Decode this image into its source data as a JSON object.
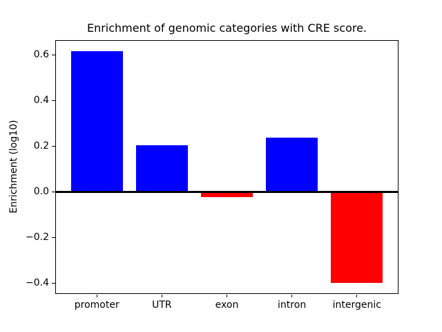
{
  "figure": {
    "background": "#ffffff",
    "text_color": "#000000",
    "spine_color": "#000000"
  },
  "chart_data": {
    "type": "bar",
    "title": "Enrichment of genomic categories with CRE score.",
    "xlabel": "",
    "ylabel": "Enrichment (log10)",
    "categories": [
      "promoter",
      "UTR",
      "exon",
      "intron",
      "intergenic"
    ],
    "values": [
      0.615,
      0.204,
      -0.024,
      0.237,
      -0.4
    ],
    "bar_colors": [
      "#0000ff",
      "#0000ff",
      "#ff0000",
      "#0000ff",
      "#ff0000"
    ],
    "positive_color": "#0000ff",
    "negative_color": "#ff0000",
    "bar_width": 0.8,
    "ylim": [
      -0.448,
      0.664
    ],
    "xlim": [
      -0.64,
      4.64
    ],
    "yticks": [
      0.6,
      0.4,
      0.2,
      0.0,
      -0.2,
      -0.4
    ],
    "ytick_labels": [
      "0.6",
      "0.4",
      "0.2",
      "0.0",
      "−0.2",
      "−0.4"
    ],
    "zero_line": true,
    "grid": false,
    "legend_position": "none"
  }
}
